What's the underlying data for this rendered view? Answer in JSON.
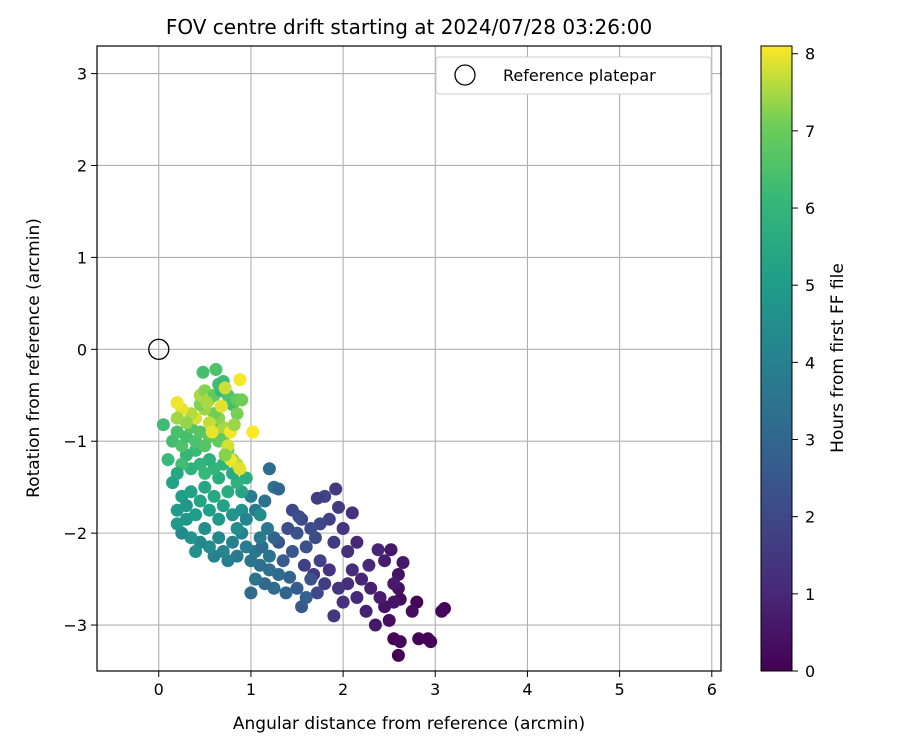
{
  "chart_data": {
    "type": "scatter",
    "title": "FOV centre drift starting at 2024/07/28 03:26:00",
    "xlabel": "Angular distance from reference (arcmin)",
    "ylabel": "Rotation from reference (arcmin)",
    "xlim": [
      -0.67,
      6.1
    ],
    "ylim": [
      -3.5,
      3.3
    ],
    "xticks": [
      0,
      1,
      2,
      3,
      4,
      5,
      6
    ],
    "yticks": [
      -3,
      -2,
      -1,
      0,
      1,
      2,
      3
    ],
    "grid": true,
    "legend": {
      "position": "top-right",
      "entries": [
        "Reference platepar"
      ]
    },
    "reference_point": {
      "name": "Reference platepar",
      "x": 0,
      "y": 0
    },
    "colorbar": {
      "label": "Hours from first FF file",
      "colormap": "viridis",
      "range": [
        0,
        8.1
      ],
      "ticks": [
        0,
        1,
        2,
        3,
        4,
        5,
        6,
        7,
        8
      ]
    },
    "points": [
      [
        2.6,
        -3.33,
        0.05
      ],
      [
        2.55,
        -3.15,
        0.1
      ],
      [
        2.62,
        -3.18,
        0.15
      ],
      [
        2.82,
        -3.15,
        0.05
      ],
      [
        2.95,
        -3.18,
        0.2
      ],
      [
        2.92,
        -3.15,
        0.1
      ],
      [
        3.1,
        -2.82,
        0.1
      ],
      [
        3.07,
        -2.85,
        0.2
      ],
      [
        2.8,
        -2.75,
        0.1
      ],
      [
        2.75,
        -2.85,
        0.3
      ],
      [
        2.62,
        -2.72,
        0.25
      ],
      [
        2.6,
        -2.6,
        0.4
      ],
      [
        2.5,
        -2.95,
        0.35
      ],
      [
        2.55,
        -2.75,
        0.5
      ],
      [
        2.45,
        -2.8,
        0.45
      ],
      [
        2.35,
        -3.0,
        0.6
      ],
      [
        2.4,
        -2.7,
        0.7
      ],
      [
        2.3,
        -2.6,
        0.8
      ],
      [
        2.6,
        -2.45,
        0.5
      ],
      [
        2.65,
        -2.32,
        0.6
      ],
      [
        2.52,
        -2.18,
        0.55
      ],
      [
        2.38,
        -2.18,
        0.9
      ],
      [
        2.45,
        -2.3,
        0.75
      ],
      [
        2.55,
        -2.55,
        0.65
      ],
      [
        2.25,
        -2.85,
        0.85
      ],
      [
        2.15,
        -2.7,
        1.0
      ],
      [
        2.2,
        -2.5,
        0.95
      ],
      [
        2.28,
        -2.35,
        1.1
      ],
      [
        2.1,
        -2.4,
        1.15
      ],
      [
        2.05,
        -2.55,
        1.2
      ],
      [
        2.0,
        -2.75,
        1.3
      ],
      [
        1.95,
        -2.6,
        1.4
      ],
      [
        1.9,
        -2.9,
        1.5
      ],
      [
        1.85,
        -2.4,
        1.35
      ],
      [
        2.05,
        -2.2,
        1.25
      ],
      [
        2.15,
        -2.1,
        1.05
      ],
      [
        2.0,
        -1.95,
        1.45
      ],
      [
        1.9,
        -2.1,
        1.6
      ],
      [
        1.92,
        -1.52,
        1.55
      ],
      [
        1.8,
        -1.6,
        1.9
      ],
      [
        1.72,
        -1.62,
        1.7
      ],
      [
        2.1,
        -1.78,
        1.3
      ],
      [
        1.95,
        -1.72,
        1.65
      ],
      [
        1.85,
        -1.85,
        1.8
      ],
      [
        1.75,
        -1.9,
        2.0
      ],
      [
        1.7,
        -2.05,
        2.1
      ],
      [
        1.65,
        -1.95,
        2.2
      ],
      [
        1.6,
        -2.15,
        2.3
      ],
      [
        1.55,
        -1.85,
        1.95
      ],
      [
        1.5,
        -2.0,
        2.4
      ],
      [
        1.45,
        -2.2,
        2.5
      ],
      [
        1.4,
        -1.95,
        2.15
      ],
      [
        1.35,
        -2.3,
        2.6
      ],
      [
        1.3,
        -2.1,
        2.45
      ],
      [
        1.45,
        -1.75,
        2.0
      ],
      [
        1.52,
        -1.82,
        2.25
      ],
      [
        1.58,
        -2.35,
        1.75
      ],
      [
        1.68,
        -2.45,
        1.6
      ],
      [
        1.75,
        -2.3,
        1.85
      ],
      [
        1.8,
        -2.55,
        1.7
      ],
      [
        1.72,
        -2.65,
        2.05
      ],
      [
        1.65,
        -2.5,
        2.35
      ],
      [
        1.6,
        -2.7,
        2.8
      ],
      [
        1.55,
        -2.8,
        2.55
      ],
      [
        1.5,
        -2.6,
        2.7
      ],
      [
        1.42,
        -2.48,
        2.9
      ],
      [
        1.38,
        -2.65,
        3.0
      ],
      [
        1.3,
        -2.45,
        3.1
      ],
      [
        1.25,
        -2.6,
        3.2
      ],
      [
        1.2,
        -2.4,
        3.3
      ],
      [
        1.15,
        -2.55,
        3.05
      ],
      [
        1.1,
        -2.35,
        3.4
      ],
      [
        1.05,
        -2.5,
        3.5
      ],
      [
        1.0,
        -2.65,
        3.15
      ],
      [
        1.05,
        -2.2,
        3.6
      ],
      [
        1.12,
        -2.15,
        3.25
      ],
      [
        1.2,
        -2.25,
        3.45
      ],
      [
        1.25,
        -2.05,
        2.95
      ],
      [
        1.18,
        -1.95,
        3.7
      ],
      [
        1.1,
        -2.05,
        3.8
      ],
      [
        1.0,
        -2.3,
        3.55
      ],
      [
        0.95,
        -2.15,
        3.9
      ],
      [
        0.9,
        -2.0,
        4.0
      ],
      [
        0.85,
        -2.25,
        3.75
      ],
      [
        0.8,
        -2.1,
        4.1
      ],
      [
        0.75,
        -2.3,
        3.95
      ],
      [
        0.7,
        -2.2,
        4.2
      ],
      [
        0.65,
        -2.05,
        4.3
      ],
      [
        0.6,
        -2.25,
        4.05
      ],
      [
        0.55,
        -2.15,
        4.4
      ],
      [
        0.5,
        -1.95,
        4.5
      ],
      [
        0.45,
        -2.1,
        4.25
      ],
      [
        0.4,
        -2.2,
        4.6
      ],
      [
        0.35,
        -2.05,
        4.7
      ],
      [
        0.3,
        -1.85,
        4.8
      ],
      [
        0.25,
        -2.0,
        4.35
      ],
      [
        0.2,
        -1.9,
        4.9
      ],
      [
        0.2,
        -1.75,
        5.0
      ],
      [
        0.25,
        -1.6,
        5.1
      ],
      [
        0.3,
        -1.7,
        4.85
      ],
      [
        0.35,
        -1.55,
        5.2
      ],
      [
        0.4,
        -1.8,
        5.05
      ],
      [
        0.45,
        -1.65,
        5.3
      ],
      [
        0.5,
        -1.5,
        5.4
      ],
      [
        0.55,
        -1.75,
        5.15
      ],
      [
        0.6,
        -1.6,
        5.5
      ],
      [
        0.65,
        -1.85,
        4.95
      ],
      [
        0.7,
        -1.7,
        5.25
      ],
      [
        0.75,
        -1.55,
        5.6
      ],
      [
        0.8,
        -1.8,
        4.75
      ],
      [
        0.85,
        -1.95,
        4.55
      ],
      [
        0.9,
        -1.75,
        4.65
      ],
      [
        0.95,
        -1.85,
        4.15
      ],
      [
        1.0,
        -1.6,
        3.85
      ],
      [
        1.05,
        -1.75,
        3.65
      ],
      [
        1.1,
        -1.8,
        4.45
      ],
      [
        1.15,
        -1.65,
        3.35
      ],
      [
        1.25,
        -1.5,
        3.6
      ],
      [
        1.2,
        -1.3,
        3.2
      ],
      [
        1.3,
        -1.52,
        3.0
      ],
      [
        0.95,
        -1.4,
        5.7
      ],
      [
        0.9,
        -1.55,
        5.35
      ],
      [
        0.85,
        -1.45,
        5.8
      ],
      [
        0.8,
        -1.35,
        5.55
      ],
      [
        0.7,
        -1.25,
        5.9
      ],
      [
        0.65,
        -1.4,
        5.65
      ],
      [
        0.6,
        -1.3,
        6.0
      ],
      [
        0.55,
        -1.2,
        5.75
      ],
      [
        0.5,
        -1.35,
        6.1
      ],
      [
        0.45,
        -1.25,
        5.95
      ],
      [
        0.4,
        -1.1,
        6.2
      ],
      [
        0.35,
        -1.3,
        5.85
      ],
      [
        0.3,
        -1.15,
        6.05
      ],
      [
        0.25,
        -1.25,
        6.3
      ],
      [
        0.2,
        -1.35,
        5.45
      ],
      [
        0.15,
        -1.45,
        5.25
      ],
      [
        0.1,
        -1.2,
        6.15
      ],
      [
        0.05,
        -0.82,
        6.25
      ],
      [
        0.15,
        -1.0,
        6.35
      ],
      [
        0.2,
        -0.9,
        6.45
      ],
      [
        0.25,
        -1.05,
        6.55
      ],
      [
        0.3,
        -0.95,
        6.4
      ],
      [
        0.35,
        -0.85,
        6.6
      ],
      [
        0.4,
        -1.0,
        6.5
      ],
      [
        0.45,
        -0.9,
        6.7
      ],
      [
        0.5,
        -1.05,
        6.65
      ],
      [
        0.55,
        -0.95,
        6.8
      ],
      [
        0.6,
        -0.85,
        6.75
      ],
      [
        0.65,
        -1.0,
        6.9
      ],
      [
        0.7,
        -0.95,
        6.85
      ],
      [
        0.75,
        -1.1,
        7.0
      ],
      [
        0.8,
        -1.2,
        6.95
      ],
      [
        0.85,
        -1.25,
        7.6
      ],
      [
        0.88,
        -1.3,
        7.9
      ],
      [
        0.78,
        -1.2,
        8.0
      ],
      [
        0.75,
        -1.05,
        7.8
      ],
      [
        0.7,
        -0.85,
        7.5
      ],
      [
        0.65,
        -0.75,
        7.3
      ],
      [
        0.6,
        -0.7,
        7.1
      ],
      [
        0.55,
        -0.8,
        7.7
      ],
      [
        0.5,
        -0.65,
        7.4
      ],
      [
        0.45,
        -0.6,
        7.2
      ],
      [
        0.4,
        -0.75,
        7.85
      ],
      [
        0.35,
        -0.7,
        7.6
      ],
      [
        0.3,
        -0.8,
        7.35
      ],
      [
        0.25,
        -0.65,
        7.95
      ],
      [
        0.2,
        -0.75,
        7.45
      ],
      [
        0.2,
        -0.58,
        8.0
      ],
      [
        0.45,
        -0.5,
        7.55
      ],
      [
        0.5,
        -0.45,
        7.25
      ],
      [
        0.55,
        -0.55,
        7.65
      ],
      [
        0.6,
        -0.5,
        6.85
      ],
      [
        0.65,
        -0.38,
        6.3
      ],
      [
        0.68,
        -0.45,
        6.15
      ],
      [
        0.48,
        -0.25,
        6.4
      ],
      [
        0.62,
        -0.22,
        6.5
      ],
      [
        0.7,
        -0.35,
        6.2
      ],
      [
        0.75,
        -0.5,
        6.55
      ],
      [
        0.8,
        -0.6,
        6.35
      ],
      [
        0.85,
        -0.7,
        7.15
      ],
      [
        0.85,
        -0.55,
        6.9
      ],
      [
        0.9,
        -0.55,
        7.05
      ],
      [
        0.88,
        -0.33,
        8.05
      ],
      [
        0.72,
        -0.42,
        7.75
      ],
      [
        0.78,
        -0.9,
        8.05
      ],
      [
        1.02,
        -0.9,
        8.1
      ],
      [
        0.82,
        -0.82,
        7.4
      ],
      [
        0.72,
        -1.15,
        7.25
      ],
      [
        0.68,
        -0.62,
        7.9
      ],
      [
        0.52,
        -0.58,
        7.5
      ],
      [
        0.58,
        -0.9,
        7.95
      ]
    ]
  }
}
